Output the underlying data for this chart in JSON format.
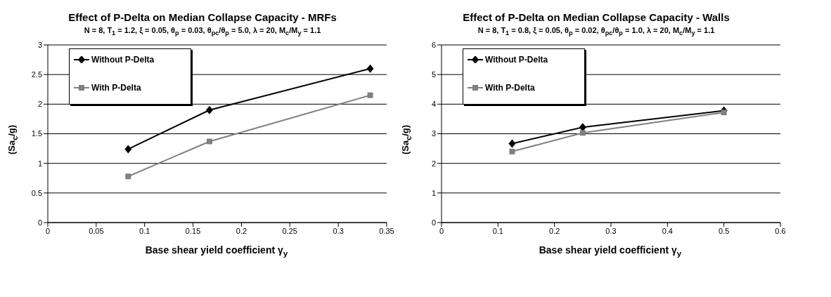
{
  "chart_data": [
    {
      "type": "line",
      "title": "Effect of P-Delta on Median Collapse Capacity - MRFs",
      "subtitle": "N = 8, T$_{1}$ = 1.2,  ξ = 0.05,  θ$_{p}$ = 0.03, θ$_{pc}$/θ$_{p}$ = 5.0, λ = 20, M$_{c}$/M$_{y}$ = 1.1",
      "xlabel": "Base shear yield coefficient γ$_{y}$",
      "ylabel": "(Sa$_{c}$/g)",
      "x": [
        0.083,
        0.167,
        0.333
      ],
      "series": [
        {
          "name": "Without P-Delta",
          "color": "#000000",
          "marker": "diamond",
          "values": [
            1.24,
            1.9,
            2.6
          ]
        },
        {
          "name": "With P-Delta",
          "color": "#808080",
          "marker": "square",
          "values": [
            0.78,
            1.37,
            2.15
          ]
        }
      ],
      "xlim": [
        0,
        0.35
      ],
      "xticks": [
        0,
        0.05,
        0.1,
        0.15,
        0.2,
        0.25,
        0.3,
        0.35
      ],
      "ylim": [
        0,
        3
      ],
      "yticks": [
        0,
        0.5,
        1,
        1.5,
        2,
        2.5,
        3
      ],
      "grid": "y",
      "legend": "top left"
    },
    {
      "type": "line",
      "title": "Effect of P-Delta on Median Collapse Capacity - Walls",
      "subtitle": "N = 8, T$_{1}$ = 0.8,  ξ = 0.05,  θ$_{p}$ = 0.02, θ$_{pc}$/θ$_{p}$ = 1.0, λ = 20, M$_{c}$/M$_{y}$ = 1.1",
      "xlabel": "Base shear yield coefficient γ$_{y}$",
      "ylabel": "(Sa$_{c}$/g)",
      "x": [
        0.125,
        0.25,
        0.5
      ],
      "series": [
        {
          "name": "Without P-Delta",
          "color": "#000000",
          "marker": "diamond",
          "values": [
            2.67,
            3.22,
            3.78
          ]
        },
        {
          "name": "With P-Delta",
          "color": "#808080",
          "marker": "square",
          "values": [
            2.4,
            3.03,
            3.72
          ]
        }
      ],
      "xlim": [
        0,
        0.6
      ],
      "xticks": [
        0,
        0.1,
        0.2,
        0.3,
        0.4,
        0.5,
        0.6
      ],
      "ylim": [
        0,
        6
      ],
      "yticks": [
        0,
        1,
        2,
        3,
        4,
        5,
        6
      ],
      "grid": "y",
      "legend": "top left"
    }
  ]
}
